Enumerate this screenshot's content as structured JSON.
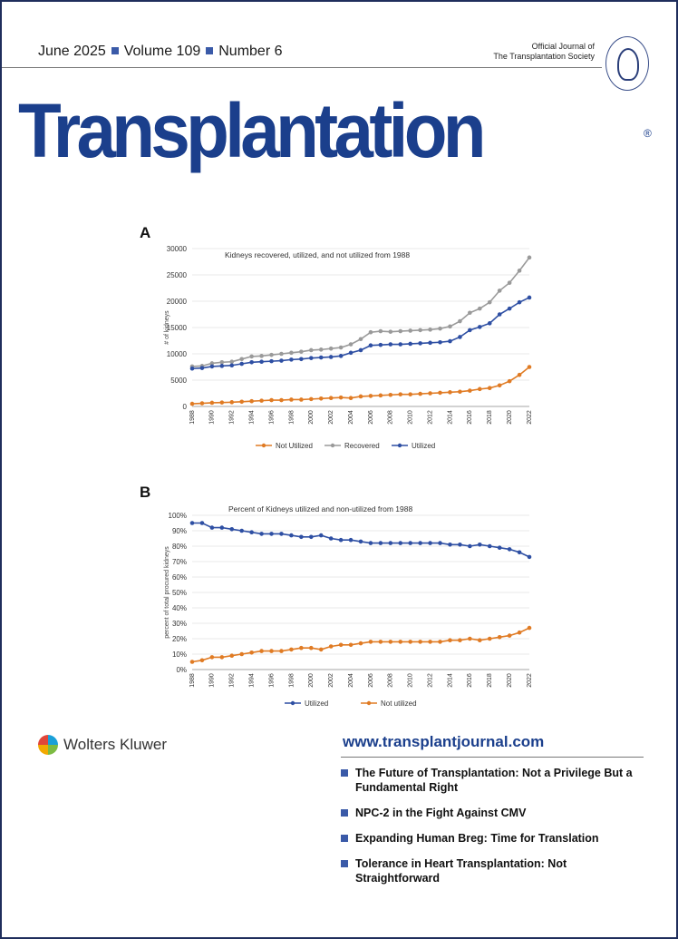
{
  "header": {
    "date": "June 2025",
    "volume": "Volume 109",
    "number": "Number 6",
    "official_line1": "Official Journal of",
    "official_line2": "The Transplantation Society",
    "title": "Transplantation",
    "registered": "®"
  },
  "colors": {
    "title_blue": "#1b3f8c",
    "bullet_blue": "#3a5aa8",
    "utilized": "#2e4fa3",
    "recovered": "#9a9a9a",
    "not_utilized": "#e07b24"
  },
  "chart_data": [
    {
      "type": "line",
      "panel_label": "A",
      "title": "Kidneys recovered, utilized, and not utilized from 1988",
      "ylabel": "# of kidneys",
      "xlabel": "",
      "ylim": [
        0,
        30000
      ],
      "yticks": [
        "0",
        "5000",
        "10000",
        "15000",
        "20000",
        "25000",
        "30000"
      ],
      "xtick_labels": [
        "1988",
        "1990",
        "1992",
        "1994",
        "1996",
        "1998",
        "2000",
        "2002",
        "2004",
        "2006",
        "2008",
        "2010",
        "2012",
        "2014",
        "2016",
        "2018",
        "2020",
        "2022"
      ],
      "x": [
        1988,
        1989,
        1990,
        1991,
        1992,
        1993,
        1994,
        1995,
        1996,
        1997,
        1998,
        1999,
        2000,
        2001,
        2002,
        2003,
        2004,
        2005,
        2006,
        2007,
        2008,
        2009,
        2010,
        2011,
        2012,
        2013,
        2014,
        2015,
        2016,
        2017,
        2018,
        2019,
        2020,
        2021,
        2022
      ],
      "legend_position": "bottom",
      "series": [
        {
          "name": "Not Utilized",
          "values": [
            500,
            600,
            700,
            750,
            800,
            900,
            1000,
            1100,
            1200,
            1200,
            1300,
            1300,
            1400,
            1500,
            1600,
            1700,
            1600,
            1900,
            2000,
            2100,
            2200,
            2300,
            2300,
            2400,
            2500,
            2600,
            2700,
            2800,
            3000,
            3300,
            3500,
            4000,
            4800,
            6000,
            7500
          ]
        },
        {
          "name": "Recovered",
          "values": [
            7600,
            7700,
            8200,
            8400,
            8500,
            9000,
            9500,
            9600,
            9800,
            10000,
            10200,
            10400,
            10700,
            10800,
            11000,
            11200,
            11800,
            12800,
            14100,
            14300,
            14200,
            14300,
            14400,
            14500,
            14600,
            14800,
            15200,
            16200,
            17800,
            18600,
            19800,
            22000,
            23500,
            25800,
            28300
          ]
        },
        {
          "name": "Utilized",
          "values": [
            7200,
            7300,
            7600,
            7700,
            7800,
            8100,
            8400,
            8500,
            8600,
            8700,
            8900,
            9000,
            9200,
            9300,
            9400,
            9600,
            10200,
            10700,
            11600,
            11700,
            11800,
            11800,
            11900,
            12000,
            12100,
            12200,
            12400,
            13200,
            14500,
            15100,
            15800,
            17500,
            18600,
            19800,
            20700
          ]
        }
      ]
    },
    {
      "type": "line",
      "panel_label": "B",
      "title": "Percent of Kidneys utilized and non-utilized from 1988",
      "ylabel": "percent of total procured kidneys",
      "xlabel": "",
      "ylim": [
        0,
        100
      ],
      "yticks": [
        "0%",
        "10%",
        "20%",
        "30%",
        "40%",
        "50%",
        "60%",
        "70%",
        "80%",
        "90%",
        "100%"
      ],
      "xtick_labels": [
        "1988",
        "1990",
        "1992",
        "1994",
        "1996",
        "1998",
        "2000",
        "2002",
        "2004",
        "2006",
        "2008",
        "2010",
        "2012",
        "2014",
        "2016",
        "2018",
        "2020",
        "2022"
      ],
      "x": [
        1988,
        1989,
        1990,
        1991,
        1992,
        1993,
        1994,
        1995,
        1996,
        1997,
        1998,
        1999,
        2000,
        2001,
        2002,
        2003,
        2004,
        2005,
        2006,
        2007,
        2008,
        2009,
        2010,
        2011,
        2012,
        2013,
        2014,
        2015,
        2016,
        2017,
        2018,
        2019,
        2020,
        2021,
        2022
      ],
      "legend_position": "bottom",
      "series": [
        {
          "name": "Utilized",
          "values": [
            95,
            95,
            92,
            92,
            91,
            90,
            89,
            88,
            88,
            88,
            87,
            86,
            86,
            87,
            85,
            84,
            84,
            83,
            82,
            82,
            82,
            82,
            82,
            82,
            82,
            82,
            81,
            81,
            80,
            81,
            80,
            79,
            78,
            76,
            73
          ]
        },
        {
          "name": "Not utilized",
          "values": [
            5,
            6,
            8,
            8,
            9,
            10,
            11,
            12,
            12,
            12,
            13,
            14,
            14,
            13,
            15,
            16,
            16,
            17,
            18,
            18,
            18,
            18,
            18,
            18,
            18,
            18,
            19,
            19,
            20,
            19,
            20,
            21,
            22,
            24,
            27
          ]
        }
      ]
    }
  ],
  "publisher": {
    "name": "Wolters Kluwer"
  },
  "website": "www.transplantjournal.com",
  "articles": [
    {
      "title": "The Future of Transplantation: Not a Privilege But a Fundamental Right"
    },
    {
      "title": "NPC-2 in the Fight Against CMV"
    },
    {
      "title": "Expanding Human Breg: Time for Translation"
    },
    {
      "title": "Tolerance in Heart Transplantation: Not Straightforward"
    }
  ]
}
